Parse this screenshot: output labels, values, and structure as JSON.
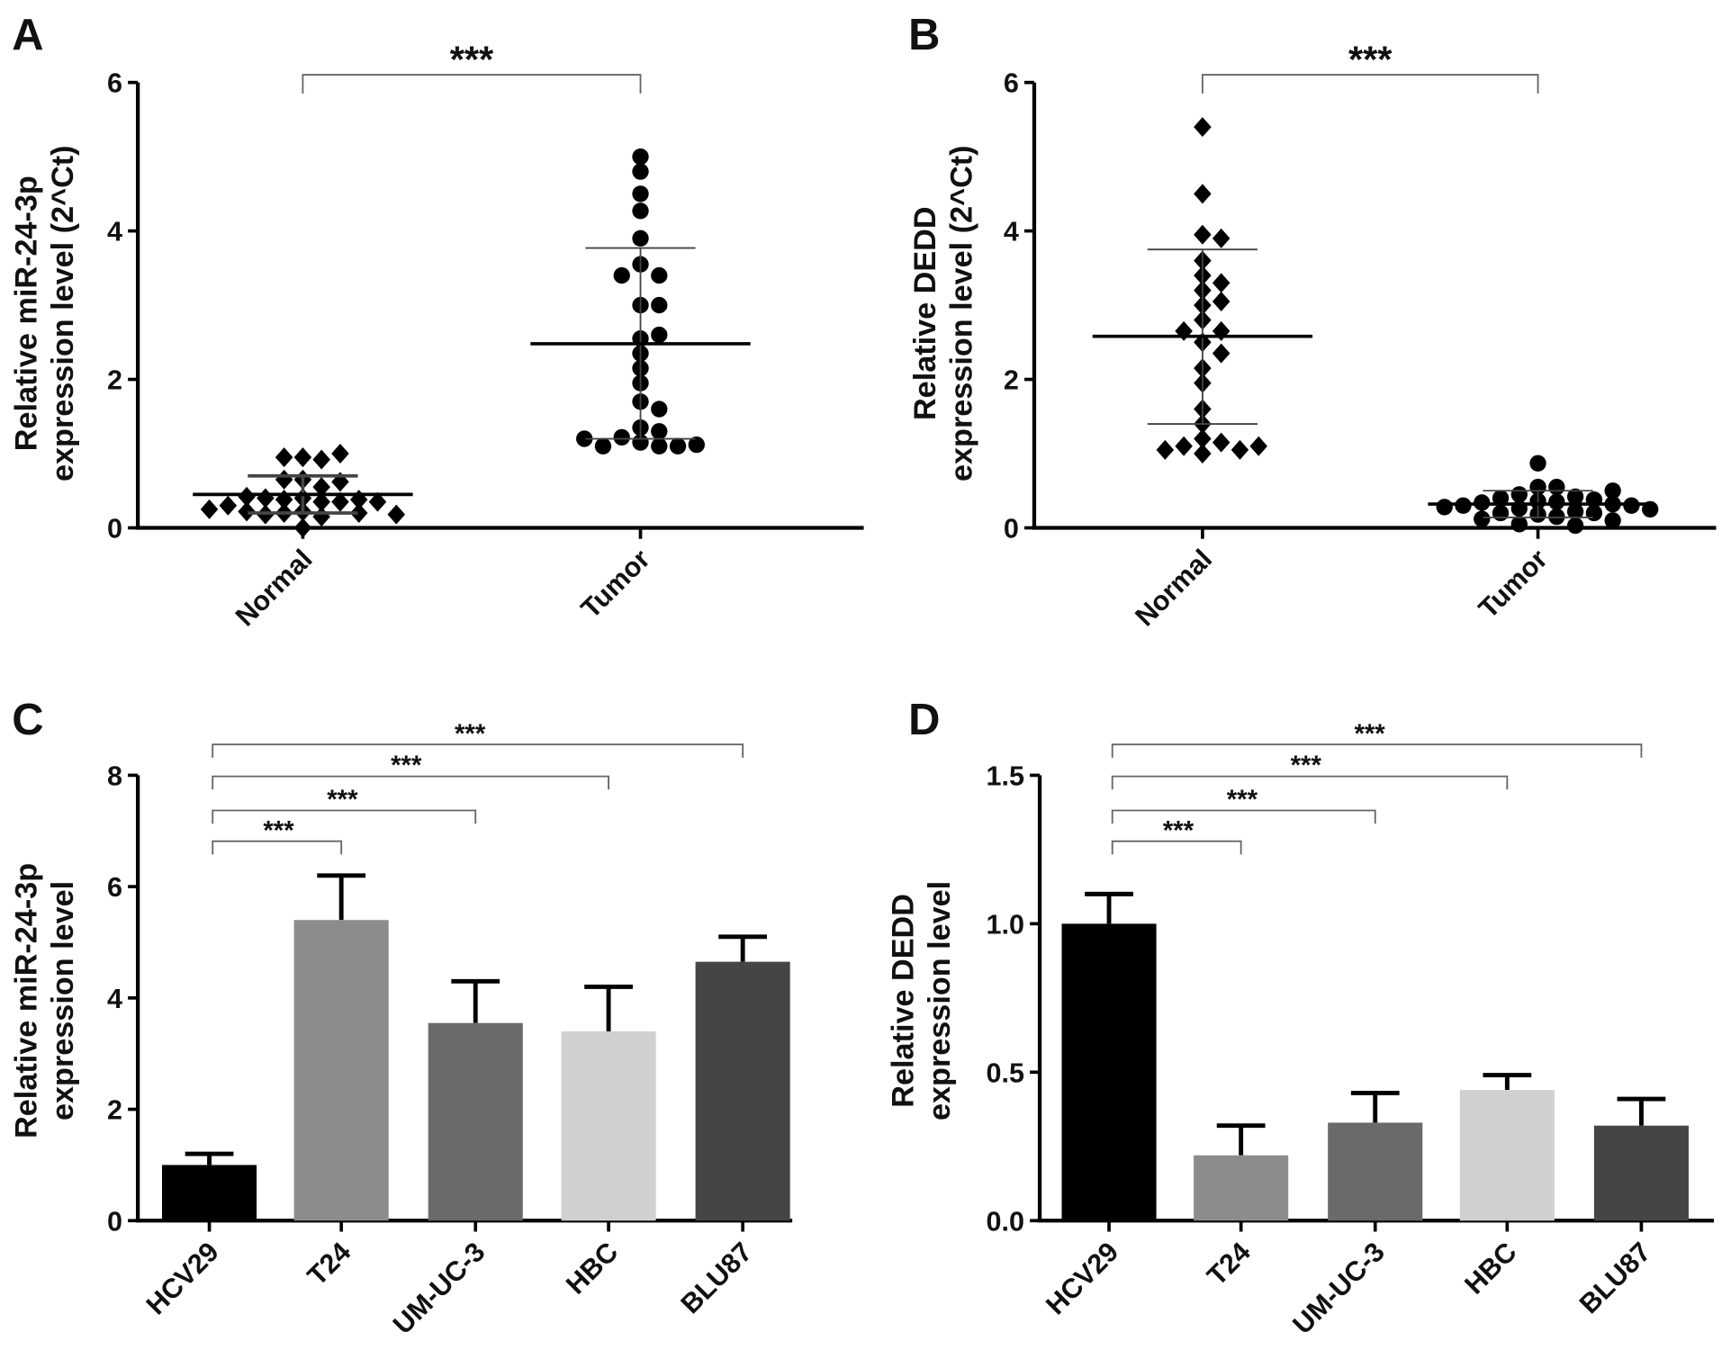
{
  "chart_data": [
    {
      "panel": "A",
      "type": "scatter",
      "ylabel": [
        "Relative miR-24-3p",
        "expression level (2^Ct)"
      ],
      "ylim": [
        0,
        6
      ],
      "yticks": [
        0,
        2,
        4,
        6
      ],
      "categories": [
        "Normal",
        "Tumor"
      ],
      "markers": [
        "diamond",
        "circle"
      ],
      "groups": [
        {
          "name": "Normal",
          "mean": 0.45,
          "sd_upper": 0.7,
          "sd_lower": 0.2,
          "values": [
            0.95,
            0.92,
            0.95,
            1.0,
            0.65,
            0.55,
            0.65,
            0.62,
            0.4,
            0.38,
            0.35,
            0.35,
            0.4,
            0.38,
            0.42,
            0.35,
            0.3,
            0.22,
            0.2,
            0.18,
            0.2,
            0.22,
            0.18,
            0.25,
            0.15,
            0.0
          ]
        },
        {
          "name": "Tumor",
          "mean": 2.48,
          "sd_upper": 3.77,
          "sd_lower": 1.2,
          "values": [
            5.0,
            4.8,
            4.5,
            4.27,
            3.9,
            3.55,
            3.4,
            3.4,
            3.0,
            3.0,
            2.55,
            2.6,
            2.35,
            2.15,
            1.95,
            1.7,
            1.6,
            1.35,
            1.3,
            1.22,
            1.15,
            1.1,
            1.1,
            1.1,
            1.12,
            1.2
          ]
        }
      ],
      "significance": [
        {
          "from": "Normal",
          "to": "Tumor",
          "label": "***"
        }
      ]
    },
    {
      "panel": "B",
      "type": "scatter",
      "ylabel": [
        "Relative DEDD",
        "expression level (2^Ct)"
      ],
      "ylim": [
        0,
        6
      ],
      "yticks": [
        0,
        2,
        4,
        6
      ],
      "categories": [
        "Normal",
        "Tumor"
      ],
      "markers": [
        "diamond",
        "circle"
      ],
      "groups": [
        {
          "name": "Normal",
          "mean": 2.58,
          "sd_upper": 3.75,
          "sd_lower": 1.4,
          "values": [
            5.4,
            4.5,
            3.95,
            3.9,
            3.6,
            3.4,
            3.3,
            3.2,
            3.05,
            3.0,
            2.8,
            2.65,
            2.65,
            2.5,
            2.35,
            2.15,
            1.95,
            1.6,
            1.4,
            1.2,
            1.15,
            1.1,
            1.05,
            1.05,
            1.0,
            1.1
          ]
        },
        {
          "name": "Tumor",
          "mean": 0.32,
          "sd_upper": 0.5,
          "sd_lower": 0.14,
          "values": [
            0.87,
            0.55,
            0.55,
            0.45,
            0.42,
            0.4,
            0.38,
            0.36,
            0.35,
            0.34,
            0.32,
            0.3,
            0.3,
            0.28,
            0.26,
            0.25,
            0.22,
            0.2,
            0.2,
            0.18,
            0.15,
            0.12,
            0.1,
            0.05,
            0.03,
            0.5
          ]
        }
      ],
      "significance": [
        {
          "from": "Normal",
          "to": "Tumor",
          "label": "***"
        }
      ]
    },
    {
      "panel": "C",
      "type": "bar",
      "ylabel": [
        "Relative miR-24-3p",
        "expression level"
      ],
      "ylim": [
        0,
        8
      ],
      "yticks": [
        0,
        2,
        4,
        6,
        8
      ],
      "categories": [
        "HCV29",
        "T24",
        "UM-UC-3",
        "HBC",
        "BLU87"
      ],
      "values": [
        1.0,
        5.4,
        3.55,
        3.4,
        4.65
      ],
      "errors": [
        0.2,
        0.8,
        0.75,
        0.8,
        0.45
      ],
      "colors": [
        "#000000",
        "#8c8c8c",
        "#6a6a6a",
        "#d0d0d0",
        "#454545"
      ],
      "significance": [
        {
          "from": "HCV29",
          "to": "T24",
          "label": "***"
        },
        {
          "from": "HCV29",
          "to": "UM-UC-3",
          "label": "***"
        },
        {
          "from": "HCV29",
          "to": "HBC",
          "label": "***"
        },
        {
          "from": "HCV29",
          "to": "BLU87",
          "label": "***"
        }
      ]
    },
    {
      "panel": "D",
      "type": "bar",
      "ylabel": [
        "Relative DEDD",
        "expression level"
      ],
      "ylim": [
        0,
        1.5
      ],
      "yticks": [
        "0.0",
        "0.5",
        "1.0",
        "1.5"
      ],
      "categories": [
        "HCV29",
        "T24",
        "UM-UC-3",
        "HBC",
        "BLU87"
      ],
      "values": [
        1.0,
        0.22,
        0.33,
        0.44,
        0.32
      ],
      "errors": [
        0.1,
        0.1,
        0.1,
        0.05,
        0.09
      ],
      "colors": [
        "#000000",
        "#8c8c8c",
        "#6a6a6a",
        "#d0d0d0",
        "#454545"
      ],
      "significance": [
        {
          "from": "HCV29",
          "to": "T24",
          "label": "***"
        },
        {
          "from": "HCV29",
          "to": "UM-UC-3",
          "label": "***"
        },
        {
          "from": "HCV29",
          "to": "HBC",
          "label": "***"
        },
        {
          "from": "HCV29",
          "to": "BLU87",
          "label": "***"
        }
      ]
    }
  ]
}
